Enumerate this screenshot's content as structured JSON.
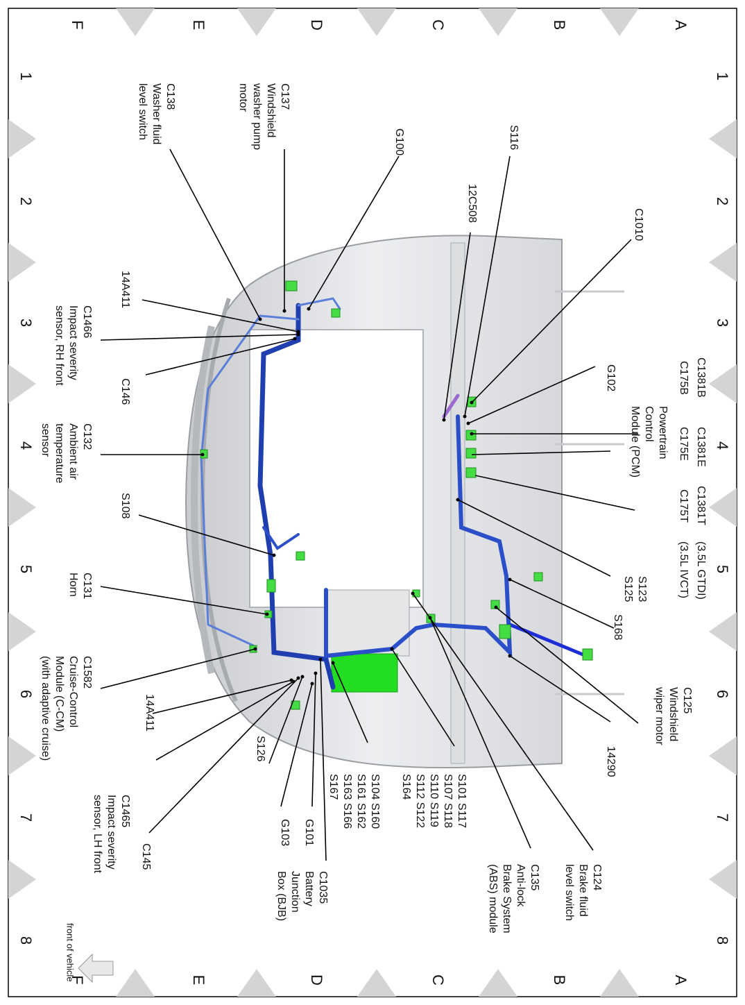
{
  "grid": {
    "columns": [
      "A",
      "B",
      "C",
      "D",
      "E",
      "F"
    ],
    "rows": [
      "1",
      "2",
      "3",
      "4",
      "5",
      "6",
      "7",
      "8"
    ]
  },
  "callouts": [
    {
      "lines": [
        "C138",
        "Washer fluid",
        "level switch"
      ]
    },
    {
      "lines": [
        "C137",
        "Windshield",
        "washer pump",
        "motor"
      ]
    },
    {
      "lines": [
        "G100"
      ]
    },
    {
      "lines": [
        "S116"
      ]
    },
    {
      "lines": [
        "12C508"
      ]
    },
    {
      "lines": [
        "C1010"
      ]
    },
    {
      "lines": [
        "14A411"
      ]
    },
    {
      "lines": [
        "C1466",
        "Impact severity",
        "sensor, RH front"
      ]
    },
    {
      "lines": [
        "C146"
      ]
    },
    {
      "lines": [
        "G102"
      ]
    },
    {
      "lines": [
        "C1381B"
      ]
    },
    {
      "lines": [
        "C1381E"
      ]
    },
    {
      "lines": [
        "C1381T"
      ]
    },
    {
      "lines": [
        "(3.5L GTDI)"
      ]
    },
    {
      "lines": [
        "C175B"
      ]
    },
    {
      "lines": [
        "C175E"
      ]
    },
    {
      "lines": [
        "C175T"
      ]
    },
    {
      "lines": [
        "(3.5L IVCT)"
      ]
    },
    {
      "lines": [
        "Powertrain",
        "Control",
        "Module (PCM)"
      ]
    },
    {
      "lines": [
        "C132",
        "Ambient air",
        "temperature",
        "sensor"
      ]
    },
    {
      "lines": [
        "S108"
      ]
    },
    {
      "lines": [
        "S123",
        "S125"
      ]
    },
    {
      "lines": [
        "S168"
      ]
    },
    {
      "lines": [
        "C131",
        "Horn"
      ]
    },
    {
      "lines": [
        "C125",
        "Windshield",
        "wiper motor"
      ]
    },
    {
      "lines": [
        "14290"
      ]
    },
    {
      "lines": [
        "C1582",
        "Cruise-Control",
        "Module (C-CM)",
        "(with adaptive cruise)"
      ]
    },
    {
      "lines": [
        "14A411"
      ]
    },
    {
      "lines": [
        "C1465",
        "Impact severity",
        "sensor, LH front"
      ]
    },
    {
      "lines": [
        "C145"
      ]
    },
    {
      "lines": [
        "S126"
      ]
    },
    {
      "lines": [
        "G103"
      ]
    },
    {
      "lines": [
        "G101"
      ]
    },
    {
      "lines": [
        "C1035",
        "Battery",
        "Junction",
        "Box (BJB)"
      ]
    },
    {
      "lines": [
        "S104 S160",
        "S161 S162",
        "S163 S166",
        "S167"
      ]
    },
    {
      "lines": [
        "S101 S117",
        "S107 S118",
        "S110 S119",
        "S112 S122",
        "S164"
      ]
    },
    {
      "lines": [
        "C135",
        "Anti-lock",
        "Brake System",
        "(ABS) module"
      ]
    },
    {
      "lines": [
        "C124",
        "Brake fluid",
        "level switch"
      ]
    }
  ],
  "front_label": "front of vehicle"
}
